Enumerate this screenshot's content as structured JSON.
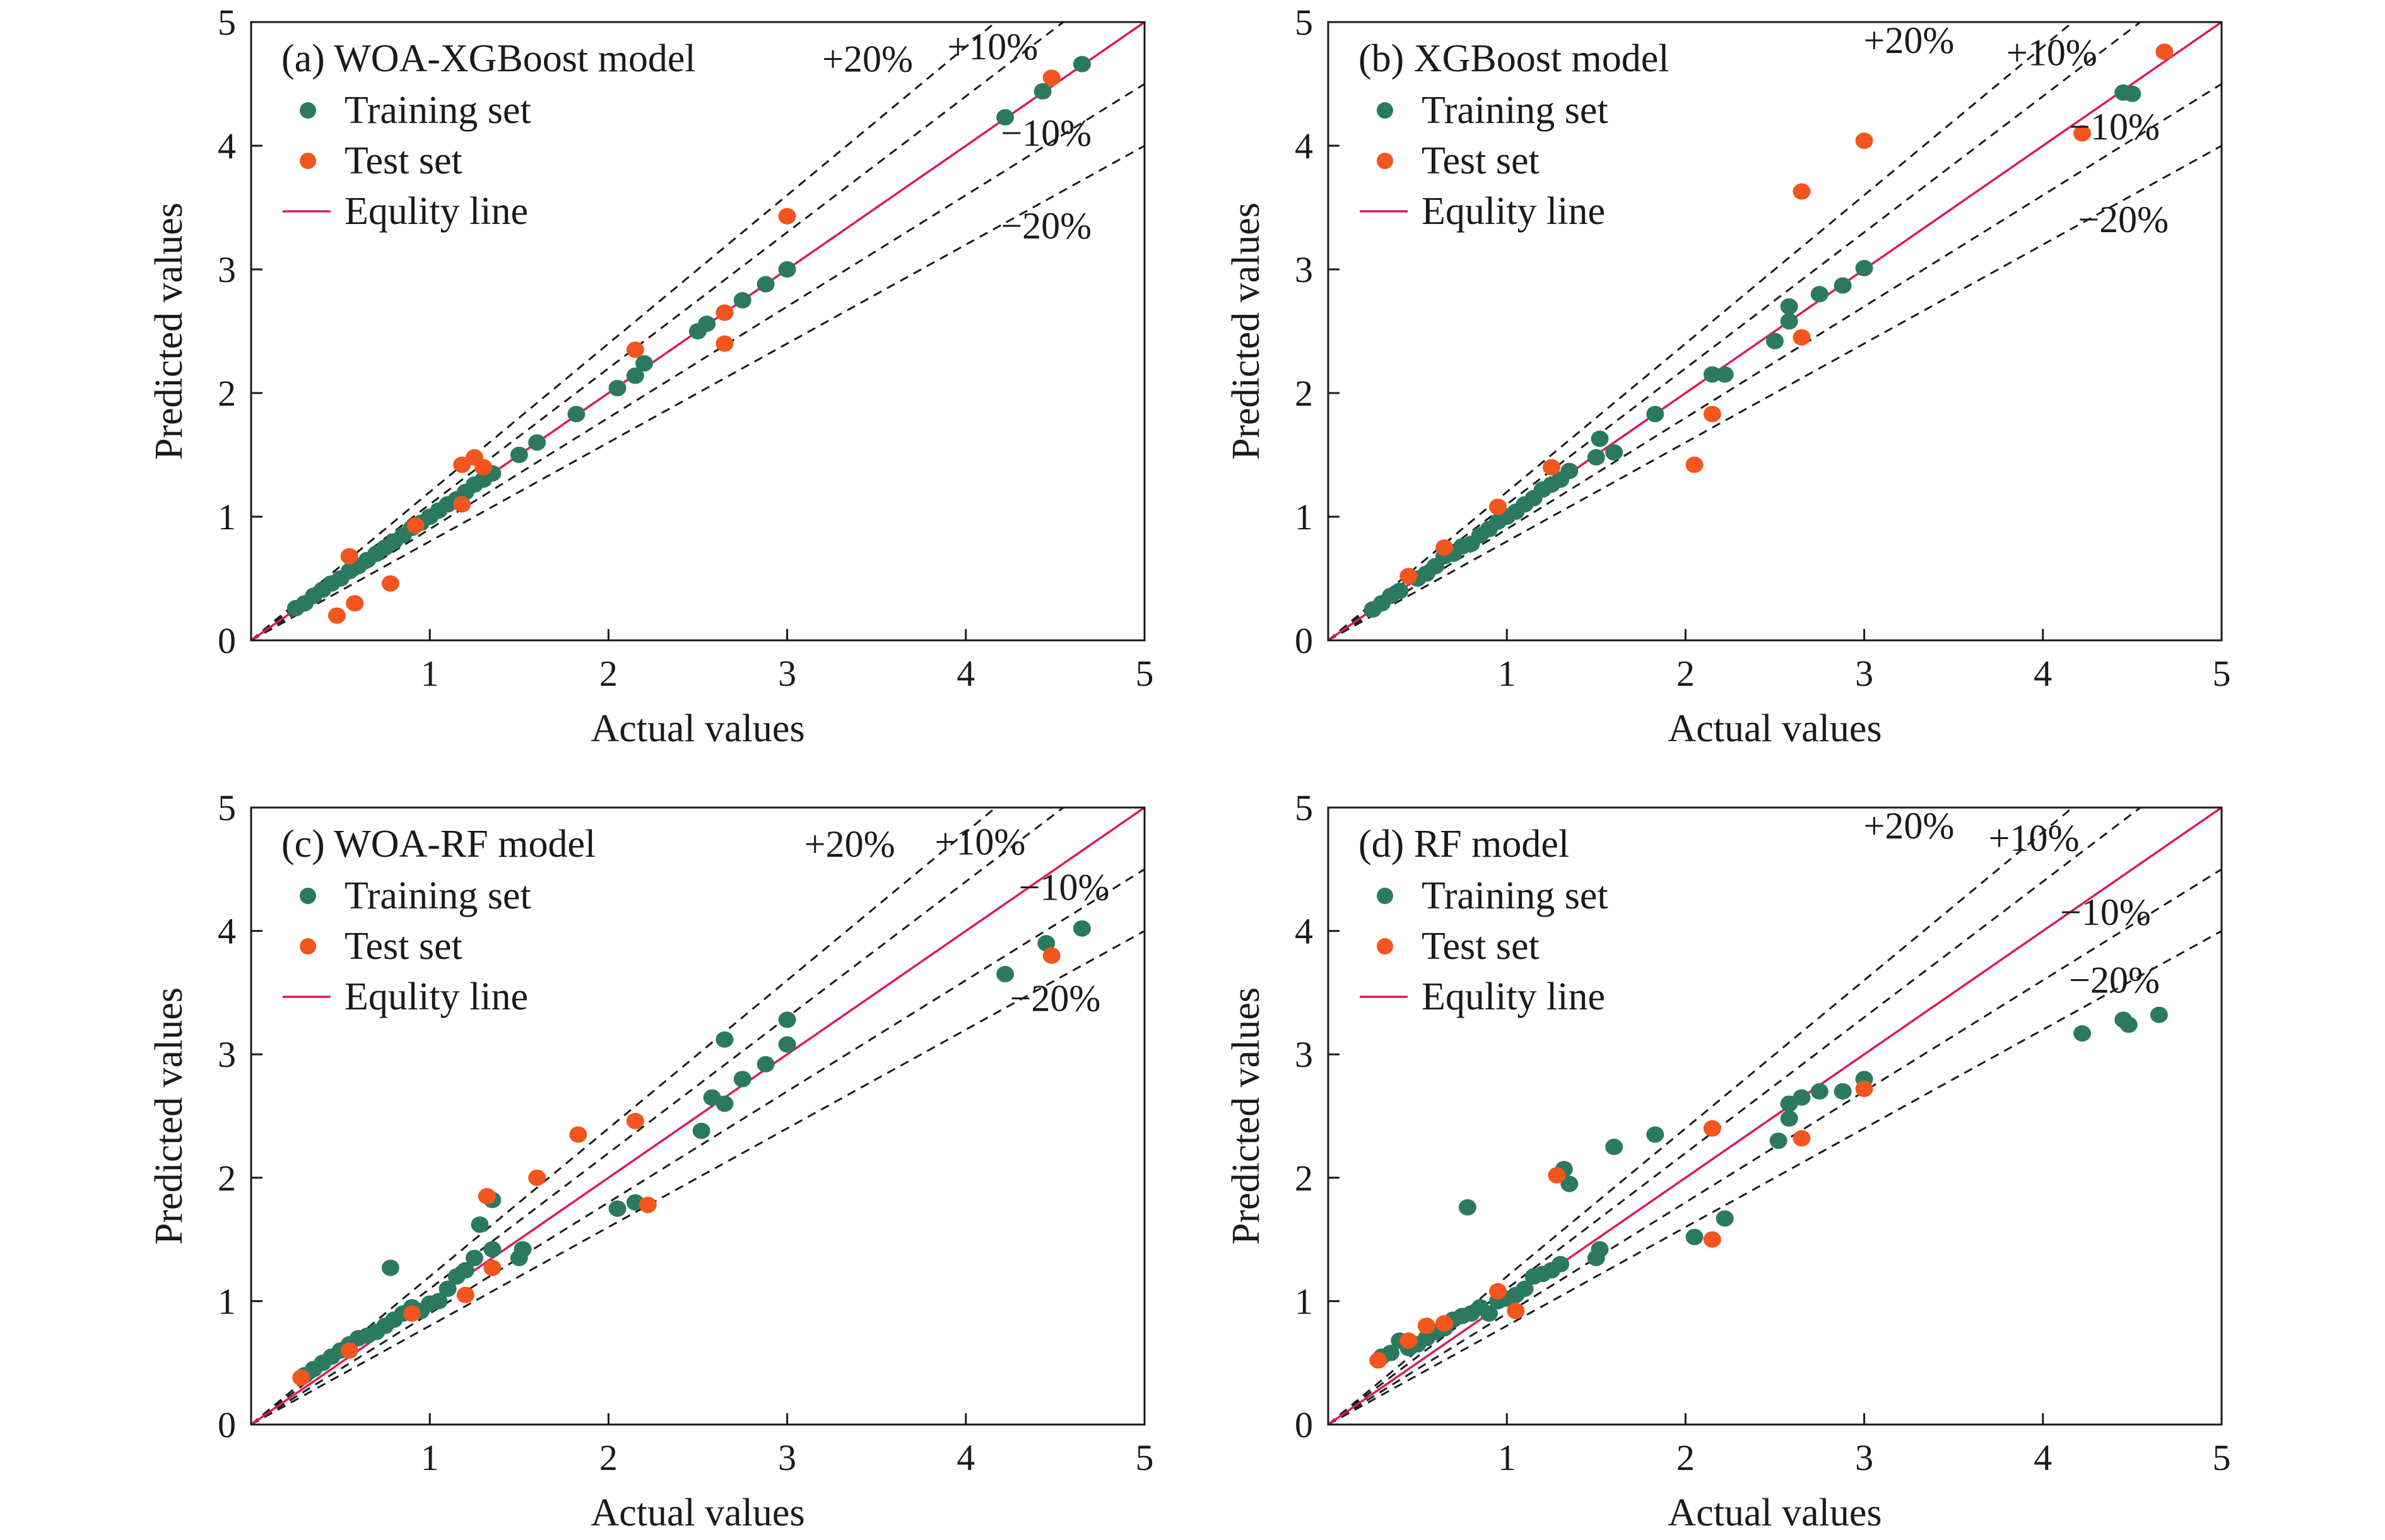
{
  "colors": {
    "training": "#2b7a5f",
    "test": "#f2551e",
    "equity": "#d81b60",
    "guide": "#1a1a1a",
    "axis": "#1a1a1a"
  },
  "chart_data": [
    {
      "type": "scatter",
      "title": "(a) WOA-XGBoost model",
      "xlabel": "Actual values",
      "ylabel": "Predicted values",
      "xlim": [
        0,
        5
      ],
      "ylim": [
        0,
        5
      ],
      "xticks": [
        "1",
        "2",
        "3",
        "4",
        "5"
      ],
      "yticks": [
        "0",
        "1",
        "2",
        "3",
        "4",
        "5"
      ],
      "legend": [
        "Training set",
        "Test set",
        "Equlity line"
      ],
      "legend_position": "top-left",
      "guide_labels": [
        {
          "text": "+20%",
          "x": 3.45,
          "y": 4.6
        },
        {
          "text": "+10%",
          "x": 4.15,
          "y": 4.7
        },
        {
          "text": "−10%",
          "x": 4.45,
          "y": 4.0
        },
        {
          "text": "−20%",
          "x": 4.45,
          "y": 3.25
        }
      ],
      "series": [
        {
          "name": "Training set",
          "points": [
            [
              0.25,
              0.26
            ],
            [
              0.3,
              0.3
            ],
            [
              0.35,
              0.36
            ],
            [
              0.4,
              0.41
            ],
            [
              0.45,
              0.46
            ],
            [
              0.5,
              0.5
            ],
            [
              0.55,
              0.56
            ],
            [
              0.6,
              0.6
            ],
            [
              0.65,
              0.65
            ],
            [
              0.7,
              0.7
            ],
            [
              0.75,
              0.75
            ],
            [
              0.8,
              0.8
            ],
            [
              0.85,
              0.85
            ],
            [
              0.9,
              0.91
            ],
            [
              0.95,
              0.95
            ],
            [
              1.0,
              1.0
            ],
            [
              1.05,
              1.05
            ],
            [
              1.1,
              1.1
            ],
            [
              1.15,
              1.14
            ],
            [
              1.2,
              1.2
            ],
            [
              1.25,
              1.26
            ],
            [
              1.3,
              1.3
            ],
            [
              1.35,
              1.35
            ],
            [
              1.5,
              1.5
            ],
            [
              1.6,
              1.6
            ],
            [
              1.82,
              1.83
            ],
            [
              2.05,
              2.04
            ],
            [
              2.15,
              2.14
            ],
            [
              2.2,
              2.24
            ],
            [
              2.5,
              2.5
            ],
            [
              2.55,
              2.56
            ],
            [
              2.65,
              2.65
            ],
            [
              2.75,
              2.75
            ],
            [
              2.88,
              2.88
            ],
            [
              3.0,
              3.0
            ],
            [
              4.22,
              4.23
            ],
            [
              4.43,
              4.44
            ],
            [
              4.65,
              4.66
            ]
          ]
        },
        {
          "name": "Test set",
          "points": [
            [
              0.48,
              0.2
            ],
            [
              0.55,
              0.68
            ],
            [
              0.58,
              0.3
            ],
            [
              0.78,
              0.46
            ],
            [
              0.92,
              0.93
            ],
            [
              1.18,
              1.42
            ],
            [
              1.25,
              1.48
            ],
            [
              1.3,
              1.4
            ],
            [
              1.18,
              1.1
            ],
            [
              2.15,
              2.35
            ],
            [
              2.65,
              2.4
            ],
            [
              2.65,
              2.65
            ],
            [
              3.0,
              3.43
            ],
            [
              4.48,
              4.55
            ]
          ]
        }
      ]
    },
    {
      "type": "scatter",
      "title": "(b) XGBoost model",
      "xlabel": "Actual values",
      "ylabel": "Predicted values",
      "xlim": [
        0,
        5
      ],
      "ylim": [
        0,
        5
      ],
      "xticks": [
        "1",
        "2",
        "3",
        "4",
        "5"
      ],
      "yticks": [
        "0",
        "1",
        "2",
        "3",
        "4",
        "5"
      ],
      "legend": [
        "Training set",
        "Test set",
        "Equlity line"
      ],
      "legend_position": "top-left",
      "guide_labels": [
        {
          "text": "+20%",
          "x": 3.25,
          "y": 4.75
        },
        {
          "text": "+10%",
          "x": 4.05,
          "y": 4.65
        },
        {
          "text": "−10%",
          "x": 4.4,
          "y": 4.05
        },
        {
          "text": "−20%",
          "x": 4.45,
          "y": 3.3
        }
      ],
      "series": [
        {
          "name": "Training set",
          "points": [
            [
              0.25,
              0.25
            ],
            [
              0.3,
              0.3
            ],
            [
              0.35,
              0.36
            ],
            [
              0.4,
              0.4
            ],
            [
              0.5,
              0.5
            ],
            [
              0.55,
              0.54
            ],
            [
              0.6,
              0.6
            ],
            [
              0.65,
              0.68
            ],
            [
              0.7,
              0.7
            ],
            [
              0.75,
              0.76
            ],
            [
              0.8,
              0.78
            ],
            [
              0.85,
              0.85
            ],
            [
              0.9,
              0.9
            ],
            [
              0.95,
              0.96
            ],
            [
              1.0,
              1.0
            ],
            [
              1.05,
              1.04
            ],
            [
              1.1,
              1.1
            ],
            [
              1.15,
              1.15
            ],
            [
              1.2,
              1.22
            ],
            [
              1.25,
              1.26
            ],
            [
              1.3,
              1.3
            ],
            [
              1.35,
              1.37
            ],
            [
              1.5,
              1.48
            ],
            [
              1.52,
              1.63
            ],
            [
              1.6,
              1.52
            ],
            [
              1.83,
              1.83
            ],
            [
              2.15,
              2.15
            ],
            [
              2.22,
              2.15
            ],
            [
              2.5,
              2.42
            ],
            [
              2.58,
              2.58
            ],
            [
              2.58,
              2.7
            ],
            [
              2.75,
              2.8
            ],
            [
              2.88,
              2.87
            ],
            [
              3.0,
              3.01
            ],
            [
              4.45,
              4.43
            ],
            [
              4.5,
              4.42
            ]
          ]
        },
        {
          "name": "Test set",
          "points": [
            [
              0.45,
              0.52
            ],
            [
              0.65,
              0.75
            ],
            [
              0.95,
              1.08
            ],
            [
              1.25,
              1.4
            ],
            [
              2.05,
              1.42
            ],
            [
              2.15,
              1.83
            ],
            [
              2.65,
              3.63
            ],
            [
              2.65,
              2.45
            ],
            [
              3.0,
              4.04
            ],
            [
              4.22,
              4.1
            ],
            [
              4.68,
              4.76
            ]
          ]
        }
      ]
    },
    {
      "type": "scatter",
      "title": "(c) WOA-RF model",
      "xlabel": "Actual values",
      "ylabel": "Predicted values",
      "xlim": [
        0,
        5
      ],
      "ylim": [
        0,
        5
      ],
      "xticks": [
        "1",
        "2",
        "3",
        "4",
        "5"
      ],
      "yticks": [
        "0",
        "1",
        "2",
        "3",
        "4",
        "5"
      ],
      "legend": [
        "Training set",
        "Test set",
        "Equlity line"
      ],
      "legend_position": "top-left",
      "guide_labels": [
        {
          "text": "+20%",
          "x": 3.35,
          "y": 4.6
        },
        {
          "text": "+10%",
          "x": 4.08,
          "y": 4.62
        },
        {
          "text": "−10%",
          "x": 4.55,
          "y": 4.25
        },
        {
          "text": "−20%",
          "x": 4.5,
          "y": 3.35
        }
      ],
      "series": [
        {
          "name": "Training set",
          "points": [
            [
              0.3,
              0.4
            ],
            [
              0.35,
              0.45
            ],
            [
              0.4,
              0.5
            ],
            [
              0.45,
              0.55
            ],
            [
              0.5,
              0.6
            ],
            [
              0.55,
              0.65
            ],
            [
              0.6,
              0.7
            ],
            [
              0.65,
              0.72
            ],
            [
              0.7,
              0.75
            ],
            [
              0.75,
              0.8
            ],
            [
              0.8,
              0.85
            ],
            [
              0.85,
              0.9
            ],
            [
              0.9,
              0.95
            ],
            [
              0.95,
              0.92
            ],
            [
              1.0,
              0.98
            ],
            [
              1.05,
              1.0
            ],
            [
              1.1,
              1.1
            ],
            [
              1.15,
              1.2
            ],
            [
              1.2,
              1.25
            ],
            [
              1.25,
              1.35
            ],
            [
              1.28,
              1.62
            ],
            [
              1.35,
              1.42
            ],
            [
              1.35,
              1.82
            ],
            [
              1.5,
              1.35
            ],
            [
              1.52,
              1.42
            ],
            [
              0.78,
              1.27
            ],
            [
              2.05,
              1.75
            ],
            [
              2.15,
              1.8
            ],
            [
              2.52,
              2.38
            ],
            [
              2.58,
              2.65
            ],
            [
              2.65,
              2.6
            ],
            [
              2.65,
              3.12
            ],
            [
              2.75,
              2.8
            ],
            [
              2.88,
              2.92
            ],
            [
              3.0,
              3.28
            ],
            [
              3.0,
              3.08
            ],
            [
              4.22,
              3.65
            ],
            [
              4.45,
              3.9
            ],
            [
              4.65,
              4.02
            ]
          ]
        },
        {
          "name": "Test set",
          "points": [
            [
              0.28,
              0.38
            ],
            [
              0.55,
              0.6
            ],
            [
              0.9,
              0.9
            ],
            [
              1.2,
              1.05
            ],
            [
              1.32,
              1.85
            ],
            [
              1.35,
              1.27
            ],
            [
              1.6,
              2.0
            ],
            [
              1.83,
              2.35
            ],
            [
              2.15,
              2.46
            ],
            [
              2.22,
              1.78
            ],
            [
              4.48,
              3.8
            ]
          ]
        }
      ]
    },
    {
      "type": "scatter",
      "title": "(d) RF model",
      "xlabel": "Actual values",
      "ylabel": "Predicted values",
      "xlim": [
        0,
        5
      ],
      "ylim": [
        0,
        5
      ],
      "xticks": [
        "1",
        "2",
        "3",
        "4",
        "5"
      ],
      "yticks": [
        "0",
        "1",
        "2",
        "3",
        "4",
        "5"
      ],
      "legend": [
        "Training set",
        "Test set",
        "Equlity line"
      ],
      "legend_position": "top-left",
      "guide_labels": [
        {
          "text": "+20%",
          "x": 3.25,
          "y": 4.75
        },
        {
          "text": "+10%",
          "x": 3.95,
          "y": 4.65
        },
        {
          "text": "−10%",
          "x": 4.35,
          "y": 4.05
        },
        {
          "text": "−20%",
          "x": 4.4,
          "y": 3.5
        }
      ],
      "series": [
        {
          "name": "Training set",
          "points": [
            [
              0.3,
              0.55
            ],
            [
              0.35,
              0.58
            ],
            [
              0.4,
              0.68
            ],
            [
              0.45,
              0.62
            ],
            [
              0.5,
              0.65
            ],
            [
              0.55,
              0.7
            ],
            [
              0.6,
              0.75
            ],
            [
              0.65,
              0.78
            ],
            [
              0.7,
              0.85
            ],
            [
              0.75,
              0.88
            ],
            [
              0.78,
              1.76
            ],
            [
              0.8,
              0.9
            ],
            [
              0.85,
              0.95
            ],
            [
              0.9,
              0.9
            ],
            [
              0.95,
              1.0
            ],
            [
              1.0,
              1.02
            ],
            [
              1.05,
              1.05
            ],
            [
              1.1,
              1.1
            ],
            [
              1.15,
              1.2
            ],
            [
              1.2,
              1.22
            ],
            [
              1.25,
              1.25
            ],
            [
              1.3,
              1.3
            ],
            [
              1.32,
              2.07
            ],
            [
              1.35,
              1.95
            ],
            [
              1.5,
              1.35
            ],
            [
              1.52,
              1.42
            ],
            [
              1.6,
              2.25
            ],
            [
              1.83,
              2.35
            ],
            [
              2.05,
              1.52
            ],
            [
              2.22,
              1.67
            ],
            [
              2.52,
              2.3
            ],
            [
              2.58,
              2.48
            ],
            [
              2.58,
              2.6
            ],
            [
              2.65,
              2.65
            ],
            [
              2.75,
              2.7
            ],
            [
              2.88,
              2.7
            ],
            [
              3.0,
              2.8
            ],
            [
              4.22,
              3.17
            ],
            [
              4.45,
              3.28
            ],
            [
              4.48,
              3.24
            ],
            [
              4.65,
              3.32
            ]
          ]
        },
        {
          "name": "Test set",
          "points": [
            [
              0.28,
              0.52
            ],
            [
              0.45,
              0.68
            ],
            [
              0.55,
              0.8
            ],
            [
              0.65,
              0.82
            ],
            [
              0.95,
              1.08
            ],
            [
              1.05,
              0.92
            ],
            [
              1.28,
              2.02
            ],
            [
              2.15,
              2.4
            ],
            [
              2.15,
              1.5
            ],
            [
              2.65,
              2.32
            ],
            [
              3.0,
              2.72
            ]
          ]
        }
      ]
    }
  ]
}
